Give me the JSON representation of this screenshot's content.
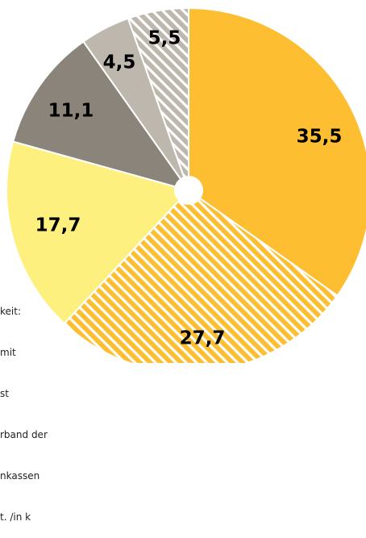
{
  "chart_data": {
    "type": "pie",
    "style": "donut",
    "start_angle_deg": 0,
    "direction": "clockwise",
    "slices": [
      {
        "value": 35.5,
        "label": "35,5",
        "color": "#FDBF31",
        "pattern": "solid"
      },
      {
        "value": 27.7,
        "label": "27,7",
        "color": "#FDBF31",
        "pattern": "hatched"
      },
      {
        "value": 17.7,
        "label": "17,7",
        "color": "#FEF07E",
        "pattern": "solid"
      },
      {
        "value": 11.1,
        "label": "11,1",
        "color": "#8A847B",
        "pattern": "solid"
      },
      {
        "value": 4.5,
        "label": "4,5",
        "color": "#BDB7AD",
        "pattern": "solid"
      },
      {
        "value": 5.5,
        "label": "5,5",
        "color": "#BDB7AD",
        "pattern": "hatched"
      }
    ]
  },
  "side_note": {
    "lines": [
      "keit:",
      "mit",
      "st",
      "rband der",
      "nkassen",
      "t. /in k"
    ]
  }
}
